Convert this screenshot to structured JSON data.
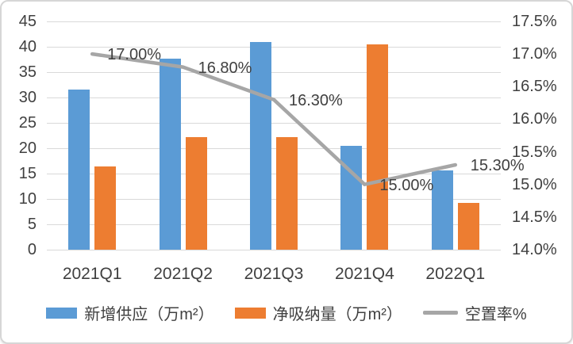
{
  "chart_data": {
    "type": "bar",
    "subtype": "combo-bar-line-dual-axis",
    "categories": [
      "2021Q1",
      "2021Q2",
      "2021Q3",
      "2021Q4",
      "2022Q1"
    ],
    "series": [
      {
        "name": "新增供应（万m²）",
        "type": "bar",
        "axis": "left",
        "color": "#5b9bd5",
        "values": [
          31.6,
          37.7,
          41.0,
          20.5,
          15.7
        ]
      },
      {
        "name": "净吸纳量（万m²）",
        "type": "bar",
        "axis": "left",
        "color": "#ed7d31",
        "values": [
          16.4,
          22.2,
          22.2,
          40.4,
          9.2
        ]
      },
      {
        "name": "空置率%",
        "type": "line",
        "axis": "right",
        "color": "#a6a6a6",
        "values": [
          17.0,
          16.8,
          16.3,
          15.0,
          15.3
        ],
        "point_labels": [
          "17.00%",
          "16.80%",
          "16.30%",
          "15.00%",
          "15.30%"
        ]
      }
    ],
    "title": "",
    "xlabel": "",
    "ylabel": "",
    "left_axis": {
      "min": 0,
      "max": 45,
      "ticks": [
        45,
        40,
        35,
        30,
        25,
        20,
        15,
        10,
        5,
        0
      ]
    },
    "right_axis": {
      "min": 14.0,
      "max": 17.5,
      "ticks": [
        "17.5%",
        "17.0%",
        "16.5%",
        "16.0%",
        "15.5%",
        "15.0%",
        "14.5%",
        "14.0%"
      ]
    },
    "grid": true,
    "legend_position": "bottom"
  },
  "colors": {
    "bar_blue": "#5b9bd5",
    "bar_orange": "#ed7d31",
    "line_gray": "#a6a6a6",
    "gridline": "#d9d9d9",
    "text": "#404040",
    "card_border": "#d6d6d6"
  }
}
